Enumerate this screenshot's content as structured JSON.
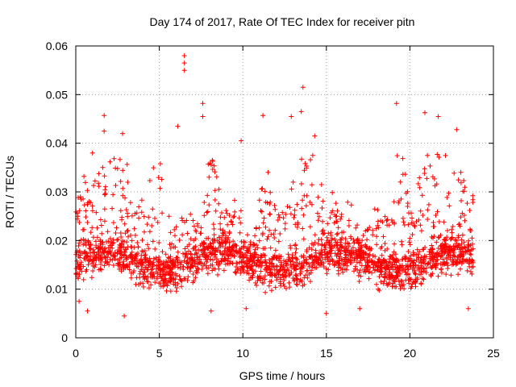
{
  "chart_data": {
    "type": "scatter",
    "title": "Day 174 of 2017, Rate Of TEC Index for receiver pitn",
    "xlabel": "GPS time / hours",
    "ylabel": "ROTI / TECUs",
    "xlim": [
      0,
      25
    ],
    "ylim": [
      0,
      0.06
    ],
    "xticks": [
      0,
      5,
      10,
      15,
      20,
      25
    ],
    "xtick_labels": [
      "0",
      "5",
      "10",
      "15",
      "20",
      "25"
    ],
    "yticks": [
      0,
      0.01,
      0.02,
      0.03,
      0.04,
      0.05,
      0.06
    ],
    "ytick_labels": [
      "0",
      "0.01",
      "0.02",
      "0.03",
      "0.04",
      "0.05",
      "0.06"
    ],
    "grid": true,
    "marker": "+",
    "color": "#ff0000",
    "x_range_of_data": [
      0,
      23.8
    ],
    "typical_range": [
      0.008,
      0.03
    ],
    "notable_points": [
      {
        "x": 6.5,
        "y": 0.058
      },
      {
        "x": 6.5,
        "y": 0.0565
      },
      {
        "x": 6.5,
        "y": 0.055
      },
      {
        "x": 13.6,
        "y": 0.0515
      },
      {
        "x": 19.2,
        "y": 0.0482
      },
      {
        "x": 7.6,
        "y": 0.0482
      },
      {
        "x": 7.6,
        "y": 0.0455
      },
      {
        "x": 13.5,
        "y": 0.0465
      },
      {
        "x": 1.7,
        "y": 0.0457
      },
      {
        "x": 11.2,
        "y": 0.0457
      },
      {
        "x": 20.9,
        "y": 0.0463
      },
      {
        "x": 21.7,
        "y": 0.0455
      },
      {
        "x": 12.9,
        "y": 0.0455
      },
      {
        "x": 6.1,
        "y": 0.0435
      },
      {
        "x": 22.8,
        "y": 0.0428
      },
      {
        "x": 14.3,
        "y": 0.0415
      },
      {
        "x": 1.7,
        "y": 0.0425
      },
      {
        "x": 9.9,
        "y": 0.0405
      },
      {
        "x": 2.8,
        "y": 0.042
      },
      {
        "x": 1.0,
        "y": 0.038
      },
      {
        "x": 0.2,
        "y": 0.0075
      },
      {
        "x": 0.7,
        "y": 0.0055
      },
      {
        "x": 10.2,
        "y": 0.006
      },
      {
        "x": 15.0,
        "y": 0.005
      },
      {
        "x": 17.0,
        "y": 0.006
      },
      {
        "x": 23.5,
        "y": 0.006
      },
      {
        "x": 8.1,
        "y": 0.0055
      },
      {
        "x": 2.9,
        "y": 0.0045
      }
    ],
    "quiet_periods": [
      {
        "x": [
          15.5,
          18.3
        ],
        "upper_y": 0.028
      },
      {
        "x": [
          12.0,
          12.8
        ],
        "upper_y": 0.027
      }
    ],
    "active_periods": [
      {
        "x": [
          13.3,
          14.4
        ],
        "upper_y": 0.04
      },
      {
        "x": [
          20.2,
          22.2
        ],
        "upper_y": 0.038
      },
      {
        "x": [
          2.0,
          3.2
        ],
        "upper_y": 0.037
      }
    ]
  }
}
